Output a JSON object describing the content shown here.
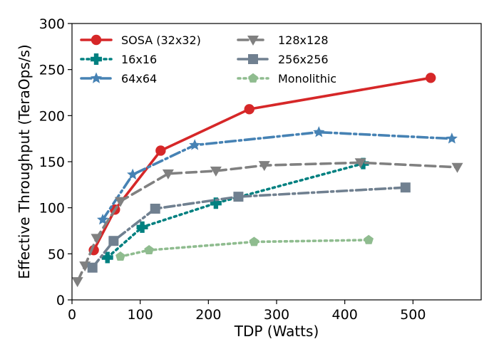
{
  "chart_data": {
    "type": "line",
    "title": "",
    "xlabel": "TDP (Watts)",
    "ylabel": "Effective Throughput (TeraOps/s)",
    "xlim": [
      0,
      600
    ],
    "ylim": [
      0,
      300
    ],
    "xticks": [
      0,
      100,
      200,
      300,
      400,
      500
    ],
    "yticks": [
      0,
      50,
      100,
      150,
      200,
      250,
      300
    ],
    "xtick_labels": [
      "0",
      "100",
      "200",
      "300",
      "400",
      "500"
    ],
    "ytick_labels": [
      "0",
      "50",
      "100",
      "150",
      "200",
      "250",
      "300"
    ],
    "grid": false,
    "legend": {
      "placement": "top-left",
      "columns": 2
    },
    "series": [
      {
        "name": "SOSA (32x32)",
        "color": "#d62728",
        "dash": "solid",
        "marker": "circle",
        "points": [
          [
            32,
            54
          ],
          [
            63,
            98
          ],
          [
            130,
            162
          ],
          [
            260,
            207
          ],
          [
            526,
            241
          ]
        ]
      },
      {
        "name": "16x16",
        "color": "#008080",
        "dash": "dotted",
        "marker": "plus",
        "points": [
          [
            52,
            46
          ],
          [
            103,
            79
          ],
          [
            211,
            105
          ],
          [
            427,
            148
          ]
        ]
      },
      {
        "name": "64x64",
        "color": "#4682b4",
        "dash": "dashdot",
        "marker": "star",
        "points": [
          [
            45,
            87
          ],
          [
            89,
            136
          ],
          [
            180,
            168
          ],
          [
            362,
            182
          ],
          [
            557,
            175
          ]
        ]
      },
      {
        "name": "128x128",
        "color": "#808080",
        "dash": "dashed",
        "marker": "triangle-down",
        "points": [
          [
            8,
            20
          ],
          [
            19,
            37
          ],
          [
            36,
            67
          ],
          [
            71,
            107
          ],
          [
            141,
            137
          ],
          [
            211,
            140
          ],
          [
            282,
            146
          ],
          [
            423,
            149
          ],
          [
            565,
            144
          ]
        ]
      },
      {
        "name": "256x256",
        "color": "#708090",
        "dash": "dashdot",
        "marker": "square",
        "points": [
          [
            30,
            35
          ],
          [
            61,
            64
          ],
          [
            122,
            99
          ],
          [
            244,
            112
          ],
          [
            489,
            122
          ]
        ]
      },
      {
        "name": "Monolithic",
        "color": "#8fbc8f",
        "dash": "dotted",
        "marker": "pentagon",
        "points": [
          [
            71,
            47
          ],
          [
            113,
            54
          ],
          [
            267,
            63
          ],
          [
            435,
            65
          ]
        ]
      }
    ]
  }
}
